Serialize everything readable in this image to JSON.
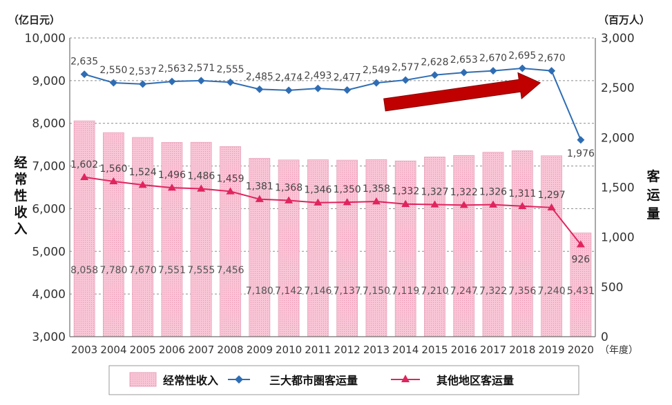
{
  "chart_data": {
    "type": "bar+line",
    "categories": [
      "2003",
      "2004",
      "2005",
      "2006",
      "2007",
      "2008",
      "2009",
      "2010",
      "2011",
      "2012",
      "2013",
      "2014",
      "2015",
      "2016",
      "2017",
      "2018",
      "2019",
      "2020"
    ],
    "x_unit": "（年度）",
    "left_axis": {
      "unit": "（亿日元）",
      "label": "经常性收入",
      "range": [
        3000,
        10000
      ],
      "ticks": [
        3000,
        4000,
        5000,
        6000,
        7000,
        8000,
        9000,
        10000
      ],
      "tick_labels": [
        "3,000",
        "4,000",
        "5,000",
        "6,000",
        "7,000",
        "8,000",
        "9,000",
        "10,000"
      ]
    },
    "right_axis": {
      "unit": "（百万人）",
      "label": "客运量",
      "range": [
        0,
        3000
      ],
      "ticks": [
        0,
        500,
        1000,
        1500,
        2000,
        2500,
        3000
      ],
      "tick_labels": [
        "0",
        "500",
        "1,000",
        "1,500",
        "2,000",
        "2,500",
        "3,000"
      ]
    },
    "grid": "dashed horizontal",
    "legend_position": "bottom",
    "series": [
      {
        "name": "经常性收入",
        "kind": "bar",
        "axis": "left",
        "color": "#f7c3d4",
        "values": [
          8058,
          7780,
          7670,
          7551,
          7555,
          7456,
          7180,
          7142,
          7146,
          7137,
          7150,
          7119,
          7210,
          7247,
          7322,
          7356,
          7240,
          5431
        ],
        "labels": [
          "8,058",
          "7,780",
          "7,670",
          "7,551",
          "7,555",
          "7,456",
          "7,180",
          "7,142",
          "7,146",
          "7,137",
          "7,150",
          "7,119",
          "7,210",
          "7,247",
          "7,322",
          "7,356",
          "7,240",
          "5,431"
        ]
      },
      {
        "name": "三大都市圏客运量",
        "kind": "line",
        "marker": "diamond",
        "axis": "right",
        "color": "#2e6db4",
        "values": [
          2635,
          2550,
          2537,
          2563,
          2571,
          2555,
          2485,
          2474,
          2493,
          2477,
          2549,
          2577,
          2628,
          2653,
          2670,
          2695,
          2670,
          1976
        ],
        "labels": [
          "2,635",
          "2,550",
          "2,537",
          "2,563",
          "2,571",
          "2,555",
          "2,485",
          "2,474",
          "2,493",
          "2,477",
          "2,549",
          "2,577",
          "2,628",
          "2,653",
          "2,670",
          "2,695",
          "2,670",
          "1,976"
        ]
      },
      {
        "name": "其他地区客运量",
        "kind": "line",
        "marker": "triangle",
        "axis": "right",
        "color": "#e0245e",
        "values": [
          1602,
          1560,
          1524,
          1496,
          1486,
          1459,
          1381,
          1368,
          1346,
          1350,
          1358,
          1332,
          1327,
          1322,
          1326,
          1311,
          1297,
          926
        ],
        "labels": [
          "1,602",
          "1,560",
          "1,524",
          "1,496",
          "1,486",
          "1,459",
          "1,381",
          "1,368",
          "1,346",
          "1,350",
          "1,358",
          "1,332",
          "1,327",
          "1,322",
          "1,326",
          "1,311",
          "1,297",
          "926"
        ]
      }
    ],
    "annotation": {
      "kind": "arrow",
      "color": "#c00000",
      "from": "2013",
      "to": "2018"
    }
  }
}
